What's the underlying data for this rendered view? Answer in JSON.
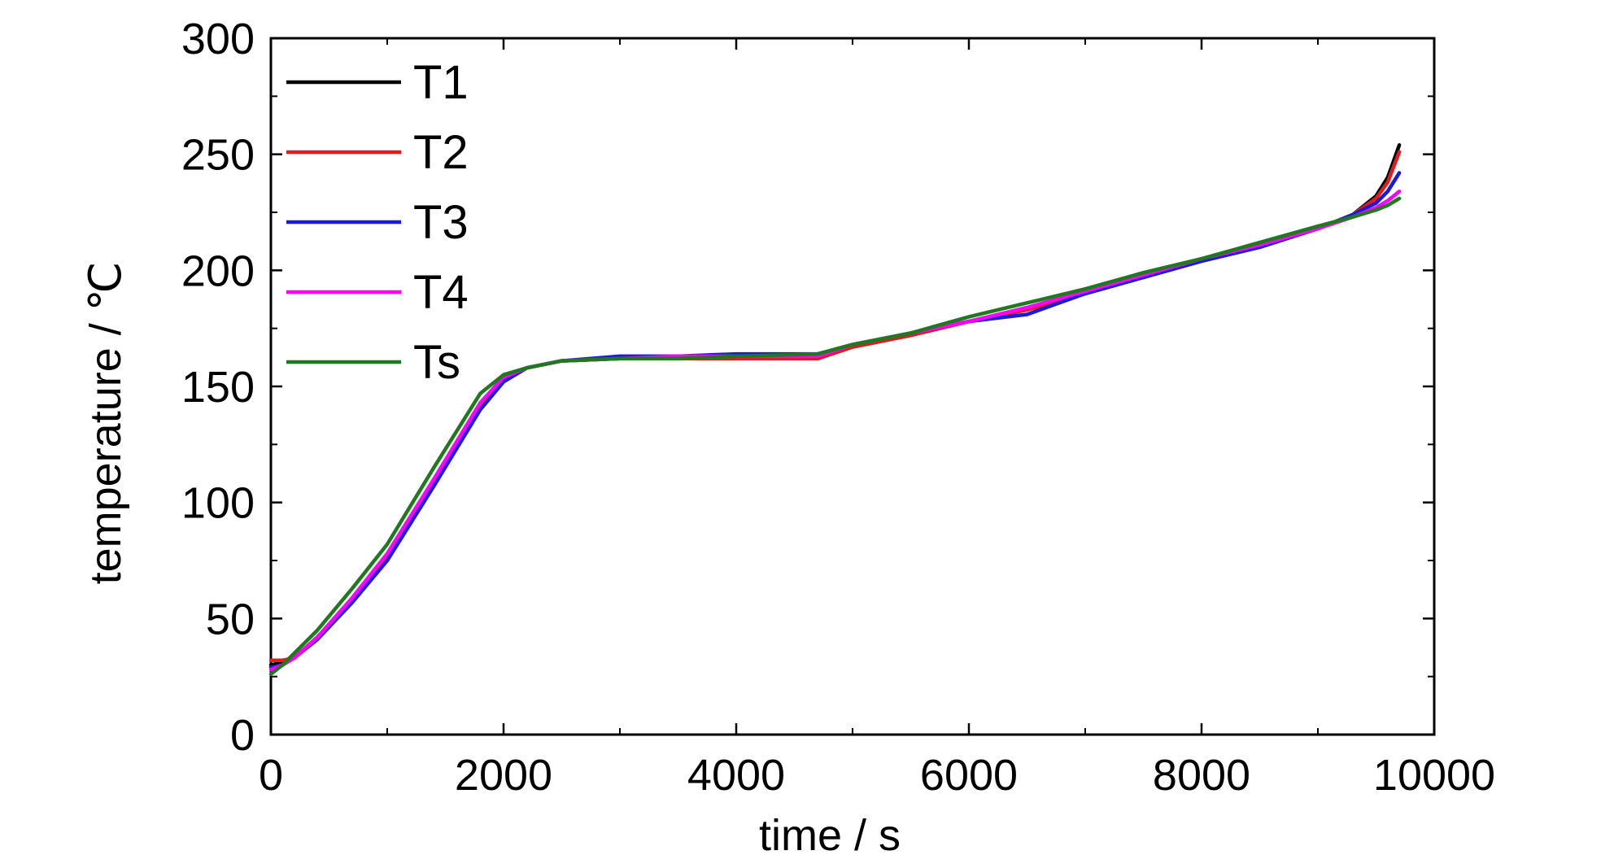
{
  "chart_data": {
    "type": "line",
    "title": "",
    "xlabel": "time / s",
    "ylabel": "temperature / ℃",
    "xlim": [
      0,
      10000
    ],
    "ylim": [
      0,
      300
    ],
    "xticks": [
      0,
      2000,
      4000,
      6000,
      8000,
      10000
    ],
    "yticks": [
      0,
      50,
      100,
      150,
      200,
      250,
      300
    ],
    "xtick_labels": [
      "0",
      "2000",
      "4000",
      "6000",
      "8000",
      "10000"
    ],
    "ytick_labels": [
      "0",
      "50",
      "100",
      "150",
      "200",
      "250",
      "300"
    ],
    "grid": false,
    "legend_position": "top-left",
    "series": [
      {
        "name": "T1",
        "color": "#000000",
        "x": [
          0,
          100,
          200,
          400,
          700,
          1000,
          1400,
          1800,
          2000,
          2200,
          2500,
          3000,
          3500,
          4000,
          4700,
          5000,
          5500,
          6000,
          6500,
          7000,
          7500,
          8000,
          8500,
          9000,
          9300,
          9500,
          9600,
          9700
        ],
        "y": [
          30,
          31,
          33,
          42,
          58,
          76,
          108,
          141,
          153,
          158,
          161,
          162,
          162,
          162,
          162,
          167,
          172,
          178,
          183,
          190,
          197,
          204,
          210,
          218,
          224,
          232,
          240,
          254
        ]
      },
      {
        "name": "T2",
        "color": "#e41a1c",
        "x": [
          0,
          100,
          200,
          400,
          700,
          1000,
          1400,
          1800,
          2000,
          2200,
          2500,
          3000,
          3500,
          4000,
          4700,
          5000,
          5500,
          6000,
          6500,
          7000,
          7500,
          8000,
          8500,
          9000,
          9300,
          9500,
          9600,
          9700
        ],
        "y": [
          32,
          32,
          33,
          42,
          58,
          76,
          108,
          141,
          153,
          158,
          161,
          162,
          162,
          162,
          162,
          167,
          172,
          178,
          183,
          190,
          197,
          204,
          210,
          218,
          224,
          231,
          238,
          251
        ]
      },
      {
        "name": "T3",
        "color": "#1a1adc",
        "x": [
          0,
          100,
          200,
          400,
          700,
          1000,
          1400,
          1800,
          2000,
          2200,
          2500,
          3000,
          3500,
          4000,
          4700,
          5000,
          5500,
          6000,
          6500,
          7000,
          7500,
          8000,
          8500,
          9000,
          9300,
          9500,
          9600,
          9700
        ],
        "y": [
          29,
          30,
          33,
          41,
          57,
          75,
          107,
          140,
          152,
          158,
          161,
          163,
          163,
          164,
          164,
          168,
          173,
          178,
          181,
          190,
          197,
          204,
          210,
          218,
          224,
          229,
          234,
          242
        ]
      },
      {
        "name": "T4",
        "color": "#ff00ff",
        "x": [
          0,
          100,
          200,
          400,
          700,
          1000,
          1400,
          1800,
          2000,
          2200,
          2500,
          3000,
          3500,
          4000,
          4700,
          5000,
          5500,
          6000,
          6500,
          7000,
          7500,
          8000,
          8500,
          9000,
          9300,
          9500,
          9600,
          9700
        ],
        "y": [
          28,
          30,
          33,
          42,
          59,
          78,
          110,
          143,
          154,
          158,
          161,
          162,
          163,
          163,
          163,
          168,
          173,
          178,
          184,
          191,
          198,
          205,
          211,
          218,
          223,
          227,
          230,
          234
        ]
      },
      {
        "name": "Ts",
        "color": "#1f7a1f",
        "x": [
          0,
          100,
          200,
          400,
          700,
          1000,
          1400,
          1800,
          2000,
          2200,
          2500,
          3000,
          3500,
          4000,
          4700,
          5000,
          5500,
          6000,
          6500,
          7000,
          7500,
          8000,
          8500,
          9000,
          9300,
          9500,
          9600,
          9700
        ],
        "y": [
          26,
          30,
          35,
          45,
          63,
          82,
          115,
          147,
          155,
          158,
          161,
          162,
          162,
          163,
          164,
          168,
          173,
          180,
          186,
          192,
          199,
          205,
          212,
          219,
          223,
          226,
          228,
          231
        ]
      }
    ]
  }
}
